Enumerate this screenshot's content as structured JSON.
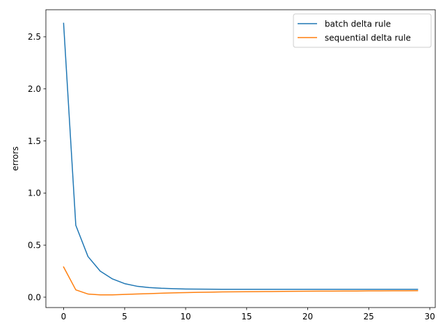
{
  "chart_data": {
    "type": "line",
    "title": "",
    "xlabel": "",
    "ylabel": "errors",
    "xlim": [
      -1.45,
      30.45
    ],
    "ylim": [
      -0.1,
      2.76
    ],
    "xticks": [
      0,
      5,
      10,
      15,
      20,
      25,
      30
    ],
    "xtick_labels": [
      "0",
      "5",
      "10",
      "15",
      "20",
      "25",
      "30"
    ],
    "yticks": [
      0.0,
      0.5,
      1.0,
      1.5,
      2.0,
      2.5
    ],
    "ytick_labels": [
      "0.0",
      "0.5",
      "1.0",
      "1.5",
      "2.0",
      "2.5"
    ],
    "grid": false,
    "legend_position": "upper right",
    "x": [
      0,
      1,
      2,
      3,
      4,
      5,
      6,
      7,
      8,
      9,
      10,
      11,
      12,
      13,
      14,
      15,
      16,
      17,
      18,
      19,
      20,
      21,
      22,
      23,
      24,
      25,
      26,
      27,
      28,
      29
    ],
    "series": [
      {
        "name": "batch delta rule",
        "color": "#1f77b4",
        "values": [
          2.63,
          0.69,
          0.39,
          0.25,
          0.175,
          0.13,
          0.105,
          0.092,
          0.085,
          0.081,
          0.078,
          0.077,
          0.076,
          0.075,
          0.075,
          0.075,
          0.075,
          0.075,
          0.075,
          0.075,
          0.075,
          0.075,
          0.075,
          0.075,
          0.075,
          0.075,
          0.075,
          0.075,
          0.075,
          0.075
        ]
      },
      {
        "name": "sequential delta rule",
        "color": "#ff7f0e",
        "values": [
          0.29,
          0.07,
          0.03,
          0.022,
          0.022,
          0.026,
          0.03,
          0.034,
          0.038,
          0.041,
          0.044,
          0.046,
          0.048,
          0.05,
          0.051,
          0.052,
          0.053,
          0.054,
          0.055,
          0.056,
          0.057,
          0.058,
          0.058,
          0.059,
          0.059,
          0.06,
          0.06,
          0.061,
          0.061,
          0.062
        ]
      }
    ]
  }
}
